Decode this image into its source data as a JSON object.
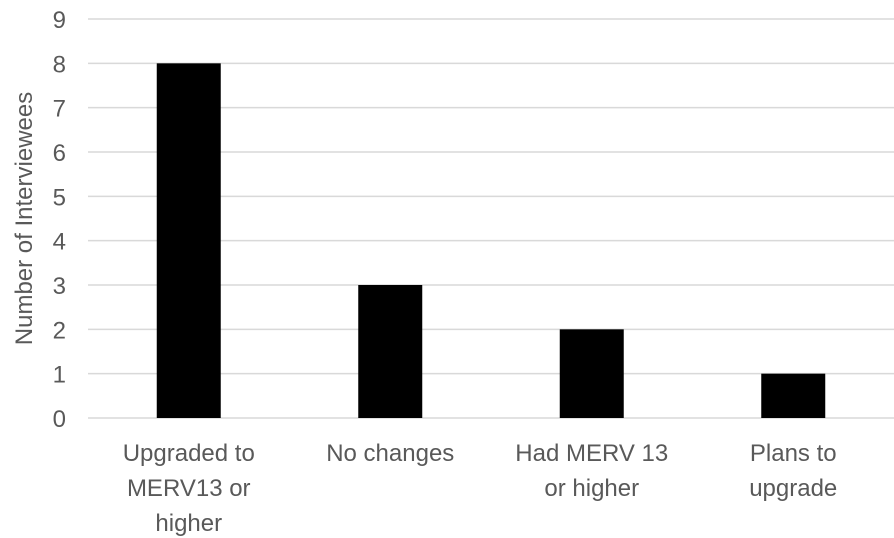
{
  "chart_data": {
    "type": "bar",
    "title": "",
    "xlabel": "",
    "ylabel": "Number of Interviewees",
    "ylim": [
      0,
      9
    ],
    "yticks": [
      0,
      1,
      2,
      3,
      4,
      5,
      6,
      7,
      8,
      9
    ],
    "grid": true,
    "legend": "none",
    "categories": [
      [
        "Upgraded to",
        "MERV13 or",
        "higher"
      ],
      [
        "No changes"
      ],
      [
        "Had MERV 13",
        "or higher"
      ],
      [
        "Plans to",
        "upgrade"
      ]
    ],
    "values": [
      8,
      3,
      2,
      1
    ],
    "bar_color": "#000000",
    "grid_color": "#d9d9d9",
    "text_color": "#595959"
  }
}
